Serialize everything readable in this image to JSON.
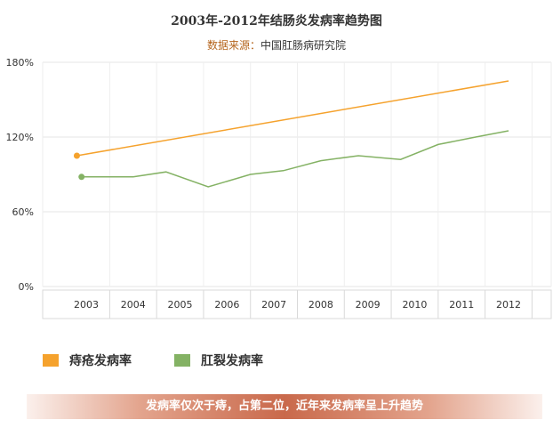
{
  "chart_data": {
    "type": "line",
    "title": "2003年-2012年结肠炎发病率趋势图",
    "source_label": "数据来源：",
    "source_value": "中国肛肠病研究院",
    "categories": [
      "2003",
      "2004",
      "2005",
      "2006",
      "2007",
      "2008",
      "2009",
      "2010",
      "2011",
      "2012"
    ],
    "y_ticks": [
      "0%",
      "60%",
      "120%",
      "180%"
    ],
    "ylim": [
      0,
      180
    ],
    "grid": true,
    "legend_position": "bottom-left",
    "series": [
      {
        "name": "痔疮发病率",
        "color": "#f5a22d",
        "points": [
          [
            2002.8,
            105
          ],
          [
            2012,
            165
          ]
        ]
      },
      {
        "name": "肛裂发病率",
        "color": "#84b264",
        "points": [
          [
            2002.9,
            88
          ],
          [
            2004,
            88
          ],
          [
            2004.7,
            92
          ],
          [
            2005.6,
            80
          ],
          [
            2006.5,
            90
          ],
          [
            2007.2,
            93
          ],
          [
            2008,
            101
          ],
          [
            2008.8,
            105
          ],
          [
            2009.7,
            102
          ],
          [
            2010.5,
            114
          ],
          [
            2011.3,
            120
          ],
          [
            2012,
            125
          ]
        ]
      }
    ]
  },
  "banner_text": "发病率仅次于痔，占第二位，近年来发病率呈上升趋势"
}
